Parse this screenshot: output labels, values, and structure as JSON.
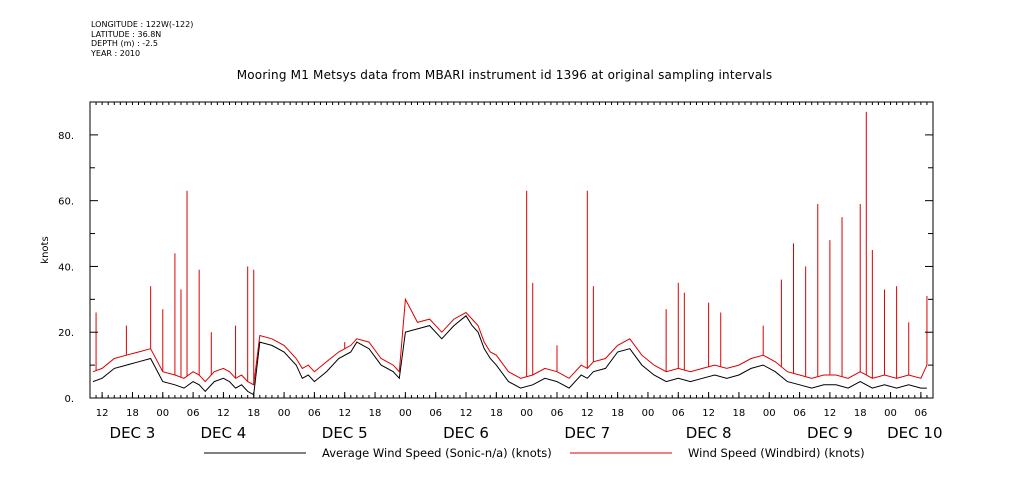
{
  "header": {
    "longitude": "LONGITUDE : 122W(-122)",
    "latitude": "LATITUDE : 36.8N",
    "depth": "DEPTH (m) : -2.5",
    "year": "YEAR : 2010"
  },
  "chart_data": {
    "type": "line",
    "title": "Mooring M1 Metsys data from MBARI instrument id 1396 at original sampling intervals",
    "ylabel": "knots",
    "xlabel": "",
    "ylim": [
      0,
      90
    ],
    "yticks": [
      0,
      20,
      40,
      60,
      80
    ],
    "ytick_labels": [
      "0.",
      "20.",
      "40.",
      "60.",
      "80."
    ],
    "xlim_hours": [
      -16,
      123
    ],
    "hour_ticks": [
      {
        "h": -14,
        "label": "12"
      },
      {
        "h": -9,
        "label": "18"
      },
      {
        "h": -4,
        "label": "00"
      },
      {
        "h": 1,
        "label": "06"
      },
      {
        "h": 6,
        "label": "12"
      },
      {
        "h": 11,
        "label": "18"
      },
      {
        "h": 16,
        "label": "00"
      },
      {
        "h": 21,
        "label": "06"
      },
      {
        "h": 26,
        "label": "12"
      },
      {
        "h": 31,
        "label": "18"
      },
      {
        "h": 36,
        "label": "00"
      },
      {
        "h": 41,
        "label": "06"
      },
      {
        "h": 46,
        "label": "12"
      },
      {
        "h": 51,
        "label": "18"
      },
      {
        "h": 56,
        "label": "00"
      },
      {
        "h": 61,
        "label": "06"
      },
      {
        "h": 66,
        "label": "12"
      },
      {
        "h": 71,
        "label": "18"
      },
      {
        "h": 76,
        "label": "00"
      },
      {
        "h": 81,
        "label": "06"
      },
      {
        "h": 86,
        "label": "12"
      },
      {
        "h": 91,
        "label": "18"
      },
      {
        "h": 96,
        "label": "00"
      },
      {
        "h": 101,
        "label": "06"
      },
      {
        "h": 106,
        "label": "12"
      },
      {
        "h": 111,
        "label": "18"
      },
      {
        "h": 116,
        "label": "00"
      },
      {
        "h": 121,
        "label": "06"
      }
    ],
    "day_labels": [
      {
        "h": -9,
        "label": "DEC  3"
      },
      {
        "h": 6,
        "label": "DEC  4"
      },
      {
        "h": 26,
        "label": "DEC  5"
      },
      {
        "h": 46,
        "label": "DEC  6"
      },
      {
        "h": 66,
        "label": "DEC  7"
      },
      {
        "h": 86,
        "label": "DEC  8"
      },
      {
        "h": 106,
        "label": "DEC  9"
      },
      {
        "h": 120,
        "label": "DEC 10"
      }
    ],
    "x_unit_note": "hours from DEC 4 00:00 (2010)",
    "series": [
      {
        "name": "Average Wind Speed (Sonic-n/a) (knots)",
        "color": "#000000",
        "x": [
          -15.5,
          -14,
          -12,
          -10,
          -8,
          -6,
          -4,
          -2,
          -0.5,
          1,
          2,
          3,
          4.5,
          6,
          7,
          8,
          9,
          10,
          11,
          12,
          14,
          16,
          18,
          19,
          20,
          21,
          23,
          25,
          27,
          28,
          30,
          32,
          34,
          35,
          36,
          38,
          40,
          42,
          44,
          46,
          47,
          48,
          49,
          50,
          51,
          53,
          55,
          57,
          59,
          61,
          63,
          65,
          66,
          67,
          69,
          71,
          73,
          75,
          77,
          79,
          81,
          83,
          85,
          87,
          89,
          91,
          93,
          95,
          97,
          99,
          101,
          103,
          105,
          107,
          109,
          111,
          113,
          115,
          117,
          119,
          121,
          122
        ],
        "values": [
          5,
          6,
          9,
          10,
          11,
          12,
          5,
          4,
          3,
          5,
          4,
          2,
          5,
          6,
          5,
          3,
          4,
          2,
          1,
          17,
          16,
          14,
          10,
          6,
          7,
          5,
          8,
          12,
          14,
          17,
          15,
          10,
          8,
          6,
          20,
          21,
          22,
          18,
          22,
          25,
          22,
          20,
          15,
          12,
          10,
          5,
          3,
          4,
          6,
          5,
          3,
          7,
          6,
          8,
          9,
          14,
          15,
          10,
          7,
          5,
          6,
          5,
          6,
          7,
          6,
          7,
          9,
          10,
          8,
          5,
          4,
          3,
          4,
          4,
          3,
          5,
          3,
          4,
          3,
          4,
          3,
          3
        ]
      },
      {
        "name": "Wind Speed (Windbird) (knots)",
        "color": "#dd0000",
        "x": [
          -15.5,
          -14,
          -12,
          -10,
          -8,
          -6,
          -4,
          -2,
          -0.5,
          1,
          2,
          3,
          4.5,
          6,
          7,
          8,
          9,
          10,
          11,
          12,
          14,
          16,
          18,
          19,
          20,
          21,
          23,
          25,
          27,
          28,
          30,
          32,
          34,
          35,
          36,
          38,
          40,
          42,
          44,
          46,
          47,
          48,
          49,
          50,
          51,
          53,
          55,
          57,
          59,
          61,
          63,
          65,
          66,
          67,
          69,
          71,
          73,
          75,
          77,
          79,
          81,
          83,
          85,
          87,
          89,
          91,
          93,
          95,
          97,
          99,
          101,
          103,
          105,
          107,
          109,
          111,
          113,
          115,
          117,
          119,
          121,
          122
        ],
        "values": [
          8,
          9,
          12,
          13,
          14,
          15,
          8,
          7,
          6,
          8,
          7,
          5,
          8,
          9,
          8,
          6,
          7,
          5,
          4,
          19,
          18,
          16,
          12,
          9,
          10,
          8,
          11,
          14,
          16,
          18,
          17,
          12,
          10,
          8,
          30,
          23,
          24,
          20,
          24,
          26,
          24,
          22,
          17,
          14,
          13,
          8,
          6,
          7,
          9,
          8,
          6,
          10,
          9,
          11,
          12,
          16,
          18,
          13,
          10,
          8,
          9,
          8,
          9,
          10,
          9,
          10,
          12,
          13,
          11,
          8,
          7,
          6,
          7,
          7,
          6,
          8,
          6,
          7,
          6,
          7,
          6,
          10
        ],
        "spikes": [
          {
            "h": -15,
            "v": 26
          },
          {
            "h": -10,
            "v": 22
          },
          {
            "h": -6,
            "v": 34
          },
          {
            "h": -4,
            "v": 27
          },
          {
            "h": -2,
            "v": 44
          },
          {
            "h": -1,
            "v": 33
          },
          {
            "h": 0,
            "v": 63
          },
          {
            "h": 2,
            "v": 39
          },
          {
            "h": 4,
            "v": 20
          },
          {
            "h": 8,
            "v": 22
          },
          {
            "h": 10,
            "v": 40
          },
          {
            "h": 11,
            "v": 39
          },
          {
            "h": 26,
            "v": 17
          },
          {
            "h": 56,
            "v": 63
          },
          {
            "h": 57,
            "v": 35
          },
          {
            "h": 61,
            "v": 16
          },
          {
            "h": 66,
            "v": 63
          },
          {
            "h": 67,
            "v": 34
          },
          {
            "h": 79,
            "v": 27
          },
          {
            "h": 81,
            "v": 35
          },
          {
            "h": 82,
            "v": 32
          },
          {
            "h": 86,
            "v": 29
          },
          {
            "h": 88,
            "v": 26
          },
          {
            "h": 95,
            "v": 22
          },
          {
            "h": 98,
            "v": 36
          },
          {
            "h": 100,
            "v": 47
          },
          {
            "h": 102,
            "v": 40
          },
          {
            "h": 104,
            "v": 59
          },
          {
            "h": 106,
            "v": 48
          },
          {
            "h": 108,
            "v": 55
          },
          {
            "h": 111,
            "v": 59
          },
          {
            "h": 112,
            "v": 87
          },
          {
            "h": 113,
            "v": 45
          },
          {
            "h": 115,
            "v": 33
          },
          {
            "h": 117,
            "v": 34
          },
          {
            "h": 119,
            "v": 23
          },
          {
            "h": 122,
            "v": 31
          }
        ]
      }
    ],
    "legend": [
      "Average Wind Speed (Sonic-n/a) (knots)",
      "Wind Speed (Windbird) (knots)"
    ],
    "legend_position": "bottom",
    "grid": false
  }
}
